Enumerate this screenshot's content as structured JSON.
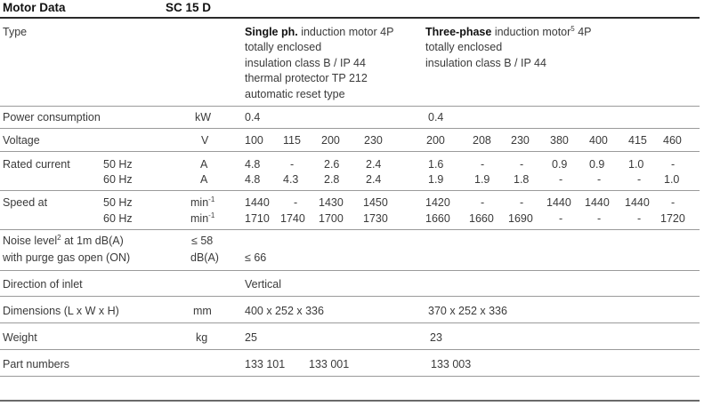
{
  "header": {
    "title": "Motor Data",
    "model": "SC 15 D"
  },
  "type_row": {
    "label": "Type",
    "single": {
      "bold": "Single ph.",
      "rest": " induction motor 4P",
      "lines": [
        "totally enclosed",
        "insulation class B / IP 44",
        "thermal protector TP 212",
        "automatic reset type"
      ]
    },
    "three": {
      "bold": "Three-phase",
      "rest": " induction motor",
      "sup": "5",
      "after": " 4P",
      "lines": [
        "totally enclosed",
        "insulation class B / IP 44"
      ]
    }
  },
  "power": {
    "label": "Power consumption",
    "unit": "kW",
    "single": "0.4",
    "three": "0.4"
  },
  "voltage": {
    "label": "Voltage",
    "unit": "V",
    "values": [
      "100",
      "115",
      "200",
      "230",
      "200",
      "208",
      "230",
      "380",
      "400",
      "415",
      "460"
    ]
  },
  "current": {
    "label": "Rated current",
    "rows": [
      {
        "freq": "50 Hz",
        "unit": "A",
        "values": [
          "4.8",
          "-",
          "2.6",
          "2.4",
          "1.6",
          "-",
          "-",
          "0.9",
          "0.9",
          "1.0",
          "-"
        ]
      },
      {
        "freq": "60 Hz",
        "unit": "A",
        "values": [
          "4.8",
          "4.3",
          "2.8",
          "2.4",
          "1.9",
          "1.9",
          "1.8",
          "-",
          "-",
          "-",
          "1.0"
        ]
      }
    ]
  },
  "speed": {
    "label": "Speed at",
    "unit_base": "min",
    "unit_sup": "-1",
    "rows": [
      {
        "freq": "50 Hz",
        "values": [
          "1440",
          "-",
          "1430",
          "1450",
          "1420",
          "-",
          "-",
          "1440",
          "1440",
          "1440",
          "-"
        ]
      },
      {
        "freq": "60 Hz",
        "values": [
          "1710",
          "1740",
          "1700",
          "1730",
          "1660",
          "1660",
          "1690",
          "-",
          "-",
          "-",
          "1720"
        ]
      }
    ]
  },
  "noise": {
    "line1_pre": "Noise level",
    "line1_sup": "2",
    "line1_post": " at 1m dB(A)",
    "line1_value": "≤ 58",
    "line2": "with purge gas open (ON)",
    "line2_unit": "dB(A)",
    "line2_value": "≤ 66"
  },
  "inlet": {
    "label": "Direction of inlet",
    "value": "Vertical"
  },
  "dimensions": {
    "label": "Dimensions (L x W x H)",
    "unit": "mm",
    "single": "400 x 252 x 336",
    "three": "370 x 252 x 336"
  },
  "weight": {
    "label": "Weight",
    "unit": "kg",
    "single": "25",
    "three": "23"
  },
  "parts": {
    "label": "Part numbers",
    "single": [
      "133 101",
      "133 001"
    ],
    "three": "133 003"
  }
}
